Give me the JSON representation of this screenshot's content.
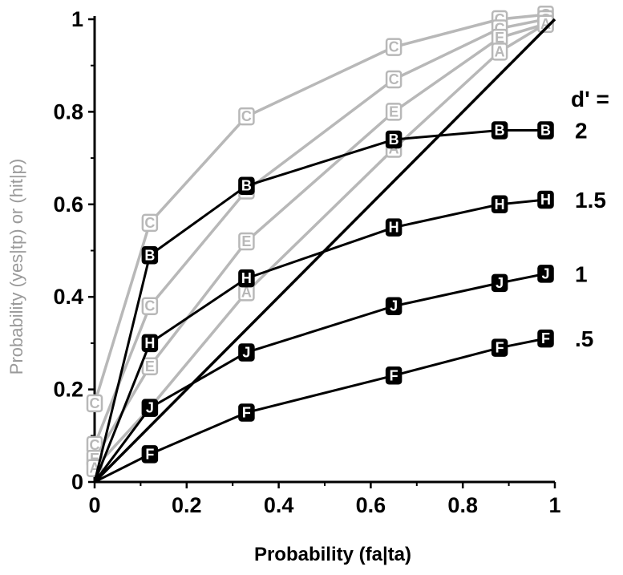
{
  "chart_data": {
    "type": "line",
    "xlabel": "Probability (fa|ta)",
    "ylabel": "Probability (yes|tp) or (hit|p)",
    "xlim": [
      0,
      1
    ],
    "ylim": [
      0,
      1
    ],
    "xticks": [
      "0",
      "0.2",
      "0.4",
      "0.6",
      "0.8",
      "1"
    ],
    "yticks": [
      "0",
      "0.2",
      "0.4",
      "0.6",
      "0.8",
      "1"
    ],
    "grid": false,
    "legend_title": "d' =",
    "x": [
      0,
      0.12,
      0.33,
      0.65,
      0.88,
      0.98
    ],
    "series": [
      {
        "name": "2",
        "color": "#000000",
        "marker": "B",
        "values": [
          0,
          0.49,
          0.64,
          0.74,
          0.76,
          0.76
        ]
      },
      {
        "name": "1.5",
        "color": "#000000",
        "marker": "H",
        "values": [
          0,
          0.3,
          0.44,
          0.55,
          0.6,
          0.61
        ]
      },
      {
        "name": "1",
        "color": "#000000",
        "marker": "J",
        "values": [
          0,
          0.16,
          0.28,
          0.38,
          0.43,
          0.45
        ]
      },
      {
        "name": ".5",
        "color": "#000000",
        "marker": "F",
        "values": [
          0,
          0.06,
          0.15,
          0.23,
          0.29,
          0.31
        ]
      },
      {
        "color": "#b8b8b8",
        "marker": "C",
        "values": [
          0.17,
          0.56,
          0.79,
          0.94,
          1.0,
          1.01
        ]
      },
      {
        "color": "#b8b8b8",
        "marker": "C",
        "values": [
          0.08,
          0.38,
          0.63,
          0.87,
          0.98,
          1.0
        ]
      },
      {
        "color": "#b8b8b8",
        "marker": "E",
        "values": [
          0.05,
          0.25,
          0.52,
          0.8,
          0.96,
          0.99
        ]
      },
      {
        "color": "#b8b8b8",
        "marker": "A",
        "values": [
          0.03,
          0.16,
          0.41,
          0.72,
          0.93,
          0.99
        ]
      },
      {
        "color": "#000000",
        "marker": "",
        "values": [
          0,
          0.12,
          0.33,
          0.65,
          0.88,
          1.0
        ],
        "x_override": [
          0,
          0.12,
          0.33,
          0.65,
          0.88,
          1.0
        ],
        "diagonal": true
      }
    ]
  }
}
